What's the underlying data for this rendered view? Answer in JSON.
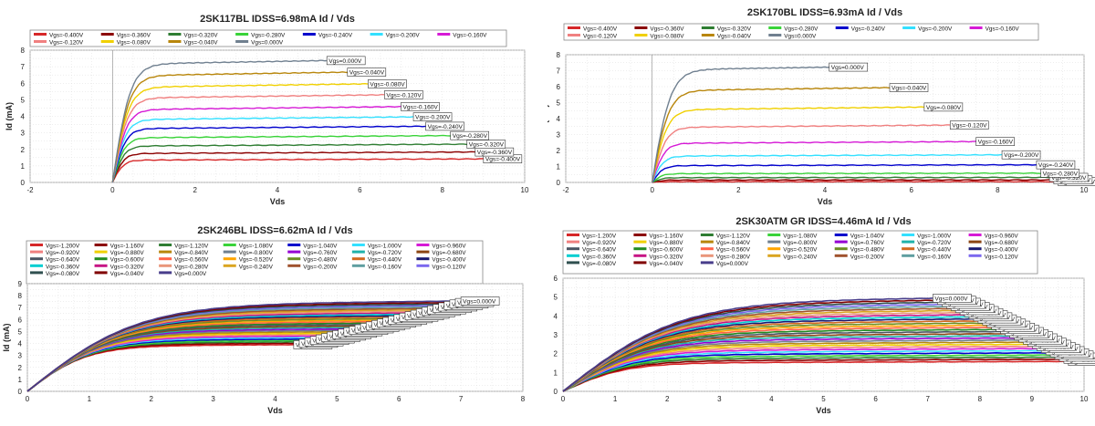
{
  "colors": {
    "-0.400": "#d62728",
    "-0.360": "#8b0000",
    "-0.320": "#2e7d32",
    "-0.280": "#39d339",
    "-0.240": "#0000cc",
    "-0.200": "#33e0ff",
    "-0.160": "#d61ad6",
    "-0.120": "#f08080",
    "-0.080": "#f0d000",
    "-0.040": "#b8860b",
    "0.000": "#708090",
    "-1.200": "#d62728",
    "-1.160": "#8b0000",
    "-1.120": "#2e7d32",
    "-1.080": "#39d339",
    "-1.040": "#0000cc",
    "-1.000": "#33e0ff",
    "-0.960": "#d61ad6",
    "-0.920": "#f08080",
    "-0.880": "#f0d000",
    "-0.840": "#b8860b",
    "-0.800": "#708090",
    "-0.760": "#9400d3",
    "-0.720": "#20b2aa",
    "-0.680": "#8b4513",
    "-0.640": "#4b5563",
    "-0.600": "#228b22",
    "-0.560": "#ff6347",
    "-0.520": "#ffa500",
    "-0.480": "#6b8e23",
    "-0.440": "#d2691e",
    "-0.400b": "#191970"
  },
  "chart_data": [
    {
      "type": "line",
      "title": "2SK117BL IDSS=6.98mA Id / Vds",
      "xlabel": "Vds",
      "ylabel": "Id (mA)",
      "xlim": [
        -2,
        10
      ],
      "ylim": [
        0,
        8
      ],
      "xticks": [
        -2,
        0,
        2,
        4,
        6,
        8,
        10
      ],
      "yticks": [
        0,
        1,
        2,
        3,
        4,
        5,
        6,
        7,
        8
      ],
      "grid": true,
      "legend_position": "top",
      "legend_columns": 7,
      "end_labels": true,
      "curve_shape": "jfet_knee",
      "series": [
        {
          "name": "Vgs=-0.400V",
          "color": "#d62728",
          "sat": 1.35,
          "vmax": 9.0
        },
        {
          "name": "Vgs=-0.360V",
          "color": "#8b0000",
          "sat": 1.75,
          "vmax": 8.8
        },
        {
          "name": "Vgs=-0.320V",
          "color": "#2e7d32",
          "sat": 2.2,
          "vmax": 8.6
        },
        {
          "name": "Vgs=-0.280V",
          "color": "#39d339",
          "sat": 2.7,
          "vmax": 8.2
        },
        {
          "name": "Vgs=-0.240V",
          "color": "#0000cc",
          "sat": 3.25,
          "vmax": 7.6
        },
        {
          "name": "Vgs=-0.200V",
          "color": "#33e0ff",
          "sat": 3.8,
          "vmax": 7.3
        },
        {
          "name": "Vgs=-0.160V",
          "color": "#d61ad6",
          "sat": 4.4,
          "vmax": 7.0
        },
        {
          "name": "Vgs=-0.120V",
          "color": "#f08080",
          "sat": 5.1,
          "vmax": 6.6
        },
        {
          "name": "Vgs=-0.080V",
          "color": "#f0d000",
          "sat": 5.75,
          "vmax": 6.2
        },
        {
          "name": "Vgs=-0.040V",
          "color": "#b8860b",
          "sat": 6.45,
          "vmax": 5.7
        },
        {
          "name": "Vgs=0.000V",
          "color": "#708090",
          "sat": 7.15,
          "vmax": 5.2
        }
      ]
    },
    {
      "type": "line",
      "title": "2SK170BL IDSS=6.93mA Id / Vds",
      "xlabel": "Vds",
      "ylabel": "Id (mA)",
      "xlim": [
        -2,
        10
      ],
      "ylim": [
        0,
        8
      ],
      "xticks": [
        -2,
        0,
        2,
        4,
        6,
        8,
        10
      ],
      "yticks": [
        0,
        1,
        2,
        3,
        4,
        5,
        6,
        7,
        8
      ],
      "grid": true,
      "legend_position": "top",
      "legend_columns": 7,
      "end_labels": true,
      "curve_shape": "jfet_knee",
      "series": [
        {
          "name": "Vgs=-0.400V",
          "color": "#d62728",
          "sat": 0.05,
          "vmax": 9.4
        },
        {
          "name": "Vgs=-0.360V",
          "color": "#8b0000",
          "sat": 0.15,
          "vmax": 9.3
        },
        {
          "name": "Vgs=-0.320V",
          "color": "#2e7d32",
          "sat": 0.3,
          "vmax": 9.2
        },
        {
          "name": "Vgs=-0.280V",
          "color": "#39d339",
          "sat": 0.55,
          "vmax": 9.0
        },
        {
          "name": "Vgs=-0.240V",
          "color": "#0000cc",
          "sat": 1.05,
          "vmax": 8.9
        },
        {
          "name": "Vgs=-0.200V",
          "color": "#33e0ff",
          "sat": 1.65,
          "vmax": 8.1
        },
        {
          "name": "Vgs=-0.160V",
          "color": "#d61ad6",
          "sat": 2.45,
          "vmax": 7.5
        },
        {
          "name": "Vgs=-0.120V",
          "color": "#f08080",
          "sat": 3.45,
          "vmax": 6.9
        },
        {
          "name": "Vgs=-0.080V",
          "color": "#f0d000",
          "sat": 4.55,
          "vmax": 6.3
        },
        {
          "name": "Vgs=-0.040V",
          "color": "#b8860b",
          "sat": 5.75,
          "vmax": 5.5
        },
        {
          "name": "Vgs=0.000V",
          "color": "#708090",
          "sat": 7.05,
          "vmax": 4.1
        }
      ]
    },
    {
      "type": "line",
      "title": "2SK246BL IDSS=6.62mA Id / Vds",
      "xlabel": "Vds",
      "ylabel": "Id (mA)",
      "xlim": [
        0,
        8
      ],
      "ylim": [
        0,
        9
      ],
      "xticks": [
        0,
        1,
        2,
        3,
        4,
        5,
        6,
        7,
        8
      ],
      "yticks": [
        0,
        1,
        2,
        3,
        4,
        5,
        6,
        7,
        8,
        9
      ],
      "grid": true,
      "legend_position": "top",
      "legend_columns": 7,
      "end_labels": true,
      "visible_end_label": "Vgs=0.000V",
      "curve_shape": "jfet_soft",
      "series": [
        {
          "name": "Vgs=-1.200V",
          "color": "#d62728"
        },
        {
          "name": "Vgs=-1.160V",
          "color": "#8b0000"
        },
        {
          "name": "Vgs=-1.120V",
          "color": "#2e7d32"
        },
        {
          "name": "Vgs=-1.080V",
          "color": "#39d339"
        },
        {
          "name": "Vgs=-1.040V",
          "color": "#0000cc"
        },
        {
          "name": "Vgs=-1.000V",
          "color": "#33e0ff"
        },
        {
          "name": "Vgs=-0.960V",
          "color": "#d61ad6"
        },
        {
          "name": "Vgs=-0.920V",
          "color": "#f08080"
        },
        {
          "name": "Vgs=-0.880V",
          "color": "#f0d000"
        },
        {
          "name": "Vgs=-0.840V",
          "color": "#b8860b"
        },
        {
          "name": "Vgs=-0.800V",
          "color": "#708090"
        },
        {
          "name": "Vgs=-0.760V",
          "color": "#9400d3"
        },
        {
          "name": "Vgs=-0.720V",
          "color": "#20b2aa"
        },
        {
          "name": "Vgs=-0.680V",
          "color": "#8b4513"
        },
        {
          "name": "Vgs=-0.640V",
          "color": "#4b5563"
        },
        {
          "name": "Vgs=-0.600V",
          "color": "#228b22"
        },
        {
          "name": "Vgs=-0.560V",
          "color": "#ff6347"
        },
        {
          "name": "Vgs=-0.520V",
          "color": "#ffa500"
        },
        {
          "name": "Vgs=-0.480V",
          "color": "#6b8e23"
        },
        {
          "name": "Vgs=-0.440V",
          "color": "#d2691e"
        },
        {
          "name": "Vgs=-0.400V",
          "color": "#191970"
        },
        {
          "name": "Vgs=-0.360V",
          "color": "#00ced1"
        },
        {
          "name": "Vgs=-0.320V",
          "color": "#c71585"
        },
        {
          "name": "Vgs=-0.280V",
          "color": "#e9967a"
        },
        {
          "name": "Vgs=-0.240V",
          "color": "#daa520"
        },
        {
          "name": "Vgs=-0.200V",
          "color": "#a0522d"
        },
        {
          "name": "Vgs=-0.160V",
          "color": "#5f9ea0"
        },
        {
          "name": "Vgs=-0.120V",
          "color": "#7b68ee"
        },
        {
          "name": "Vgs=-0.080V",
          "color": "#2f4f4f"
        },
        {
          "name": "Vgs=-0.040V",
          "color": "#800000"
        },
        {
          "name": "Vgs=0.000V",
          "color": "#483d8b"
        }
      ],
      "id_min": 3.8,
      "id_max": 7.25,
      "v_end_min": 4.3,
      "v_end_max": 7.0
    },
    {
      "type": "line",
      "title": "2SK30ATM GR IDSS=4.46mA Id / Vds",
      "xlabel": "Vds",
      "ylabel": "Id (mA)",
      "xlim": [
        0,
        10
      ],
      "ylim": [
        0,
        6
      ],
      "xticks": [
        0,
        1,
        2,
        3,
        4,
        5,
        6,
        7,
        8,
        9,
        10
      ],
      "yticks": [
        0,
        1,
        2,
        3,
        4,
        5,
        6
      ],
      "grid": true,
      "legend_position": "top",
      "legend_columns": 7,
      "end_labels": true,
      "visible_end_label": "Vgs=0.000V",
      "curve_shape": "jfet_soft",
      "series": [
        {
          "name": "Vgs=-1.200V",
          "color": "#d62728"
        },
        {
          "name": "Vgs=-1.160V",
          "color": "#8b0000"
        },
        {
          "name": "Vgs=-1.120V",
          "color": "#2e7d32"
        },
        {
          "name": "Vgs=-1.080V",
          "color": "#39d339"
        },
        {
          "name": "Vgs=-1.040V",
          "color": "#0000cc"
        },
        {
          "name": "Vgs=-1.000V",
          "color": "#33e0ff"
        },
        {
          "name": "Vgs=-0.960V",
          "color": "#d61ad6"
        },
        {
          "name": "Vgs=-0.920V",
          "color": "#f08080"
        },
        {
          "name": "Vgs=-0.880V",
          "color": "#f0d000"
        },
        {
          "name": "Vgs=-0.840V",
          "color": "#b8860b"
        },
        {
          "name": "Vgs=-0.800V",
          "color": "#708090"
        },
        {
          "name": "Vgs=-0.760V",
          "color": "#9400d3"
        },
        {
          "name": "Vgs=-0.720V",
          "color": "#20b2aa"
        },
        {
          "name": "Vgs=-0.680V",
          "color": "#8b4513"
        },
        {
          "name": "Vgs=-0.640V",
          "color": "#4b5563"
        },
        {
          "name": "Vgs=-0.600V",
          "color": "#228b22"
        },
        {
          "name": "Vgs=-0.560V",
          "color": "#ff6347"
        },
        {
          "name": "Vgs=-0.520V",
          "color": "#ffa500"
        },
        {
          "name": "Vgs=-0.480V",
          "color": "#6b8e23"
        },
        {
          "name": "Vgs=-0.440V",
          "color": "#d2691e"
        },
        {
          "name": "Vgs=-0.400V",
          "color": "#191970"
        },
        {
          "name": "Vgs=-0.360V",
          "color": "#00ced1"
        },
        {
          "name": "Vgs=-0.320V",
          "color": "#c71585"
        },
        {
          "name": "Vgs=-0.280V",
          "color": "#e9967a"
        },
        {
          "name": "Vgs=-0.240V",
          "color": "#daa520"
        },
        {
          "name": "Vgs=-0.200V",
          "color": "#a0522d"
        },
        {
          "name": "Vgs=-0.160V",
          "color": "#5f9ea0"
        },
        {
          "name": "Vgs=-0.120V",
          "color": "#7b68ee"
        },
        {
          "name": "Vgs=-0.080V",
          "color": "#2f4f4f"
        },
        {
          "name": "Vgs=-0.040V",
          "color": "#800000"
        },
        {
          "name": "Vgs=0.000V",
          "color": "#483d8b"
        }
      ],
      "id_min": 1.5,
      "id_max": 4.75,
      "v_end_min": 9.7,
      "v_end_max": 7.1
    }
  ]
}
